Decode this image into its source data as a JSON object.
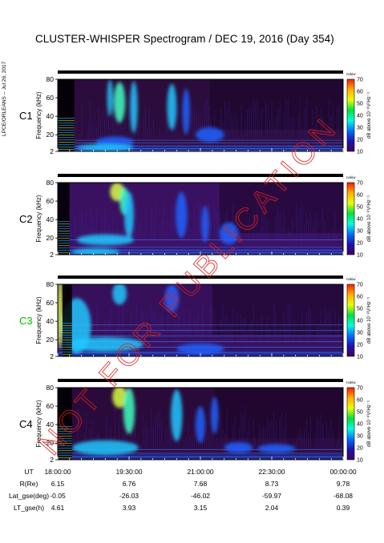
{
  "chart_data": {
    "type": "heatmap",
    "title": "CLUSTER-WHISPER Spectrogram / DEC 19, 2016 (Day 354)",
    "side_credit": "LPCE/ORLEANS -- Jul 26, 2017",
    "watermark": "NOT FOR PUBLICATION",
    "ylabel": "Frequency (kHz)",
    "ylim": [
      2,
      80
    ],
    "y_ticks": [
      "80",
      "60",
      "40",
      "20",
      "2"
    ],
    "colorbar": {
      "label": "dB above 10⁻⁸V²Hz⁻¹",
      "title": "nokiw",
      "range": [
        10,
        70
      ],
      "ticks": [
        "70",
        "60",
        "50",
        "40",
        "30",
        "20",
        "10"
      ],
      "colors": [
        "#ff1a00",
        "#ffb000",
        "#e8ff00",
        "#00e040",
        "#00ffe0",
        "#0070ff",
        "#2010b0",
        "#400060"
      ]
    },
    "panels": [
      {
        "label": "C1",
        "label_color": "#000000",
        "background": "#2c0c3c",
        "blobs": [
          [
            19.3,
            55,
            0.12,
            22,
            0.85
          ],
          [
            19.6,
            50,
            0.08,
            28,
            0.7
          ],
          [
            19.1,
            60,
            0.06,
            20,
            0.6
          ],
          [
            20.4,
            50,
            0.1,
            25,
            0.6
          ],
          [
            20.7,
            45,
            0.08,
            25,
            0.55
          ],
          [
            19.2,
            12,
            0.4,
            6,
            0.5
          ],
          [
            21.2,
            20,
            0.3,
            8,
            0.45
          ],
          [
            19.0,
            6,
            0.6,
            4,
            0.7
          ]
        ],
        "noise_band": [
          18.0,
          18.35
        ],
        "step_time": 21.2,
        "line_freqs": [
          3,
          5,
          8,
          11,
          14
        ]
      },
      {
        "label": "C2",
        "label_color": "#000000",
        "background": "#3a1060",
        "blobs": [
          [
            19.25,
            70,
            0.15,
            10,
            0.95
          ],
          [
            19.4,
            60,
            0.1,
            15,
            0.8
          ],
          [
            19.5,
            45,
            0.1,
            25,
            0.6
          ],
          [
            20.6,
            45,
            0.12,
            25,
            0.55
          ],
          [
            21.1,
            35,
            0.08,
            20,
            0.5
          ],
          [
            19.0,
            18,
            0.6,
            6,
            0.65
          ],
          [
            21.6,
            25,
            0.2,
            12,
            0.45
          ],
          [
            18.8,
            5,
            0.5,
            4,
            0.7
          ]
        ],
        "noise_band": [
          18.0,
          18.25
        ],
        "step_time": 21.4,
        "line_freqs": [
          4,
          7,
          10,
          18
        ]
      },
      {
        "label": "C3",
        "label_color": "#00c000",
        "background": "#36105a",
        "blobs": [
          [
            18.05,
            50,
            0.06,
            40,
            0.9
          ],
          [
            18.4,
            35,
            0.3,
            30,
            0.65
          ],
          [
            19.3,
            70,
            0.15,
            12,
            0.7
          ],
          [
            20.4,
            65,
            0.15,
            15,
            0.55
          ],
          [
            19.0,
            15,
            0.8,
            8,
            0.65
          ],
          [
            21.0,
            10,
            0.5,
            6,
            0.55
          ]
        ],
        "noise_band": [
          18.1,
          18.3
        ],
        "step_time": 21.25,
        "line_freqs": [
          6,
          12,
          18,
          24,
          30,
          36
        ]
      },
      {
        "label": "C4",
        "label_color": "#000000",
        "background": "#2a0a3a",
        "blobs": [
          [
            19.3,
            70,
            0.15,
            12,
            0.95
          ],
          [
            19.5,
            55,
            0.12,
            25,
            0.75
          ],
          [
            20.5,
            50,
            0.12,
            28,
            0.6
          ],
          [
            21.0,
            40,
            0.1,
            20,
            0.5
          ],
          [
            21.3,
            50,
            0.08,
            20,
            0.5
          ],
          [
            19.0,
            15,
            0.7,
            8,
            0.7
          ],
          [
            21.8,
            15,
            0.3,
            6,
            0.5
          ],
          [
            22.6,
            14,
            0.4,
            5,
            0.45
          ]
        ],
        "noise_band": [
          18.0,
          18.3
        ],
        "step_time": 21.3,
        "line_freqs": [
          5,
          9,
          13
        ]
      }
    ],
    "x_range": [
      18.0,
      24.0
    ],
    "x_ticks": [
      {
        "t": 18.0,
        "UT": "18:00:00",
        "R(Re)": "6.15",
        "Lat_gse(deg)": "-0.05",
        "LT_gse(h)": "4.61"
      },
      {
        "t": 19.5,
        "UT": "19:30:00",
        "R(Re)": "6.76",
        "Lat_gse(deg)": "-26.03",
        "LT_gse(h)": "3.93"
      },
      {
        "t": 21.0,
        "UT": "21:00:00",
        "R(Re)": "7.68",
        "Lat_gse(deg)": "-46.02",
        "LT_gse(h)": "3.15"
      },
      {
        "t": 22.5,
        "UT": "22:30:00",
        "R(Re)": "8.73",
        "Lat_gse(deg)": "-59.97",
        "LT_gse(h)": "2.04"
      },
      {
        "t": 24.0,
        "UT": "00:00:00",
        "R(Re)": "9.78",
        "Lat_gse(deg)": "-68.08",
        "LT_gse(h)": "0.39"
      }
    ],
    "ephemeris_labels": [
      "UT",
      "R(Re)",
      "Lat_gse(deg)",
      "LT_gse(h)"
    ]
  }
}
